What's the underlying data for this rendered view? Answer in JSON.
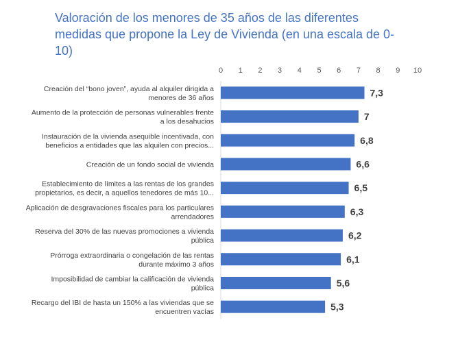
{
  "chart_data": {
    "type": "bar",
    "orientation": "horizontal",
    "title": "Valoración de los menores de 35 años de las diferentes medidas que propone la Ley de Vivienda (en una escala de 0-10)",
    "categories": [
      [
        "Creación del “bono joven”, ayuda al alquiler dirigida a",
        "menores de 36 años"
      ],
      [
        "Aumento de la protección de personas vulnerables frente",
        "a los desahucios"
      ],
      [
        "Instauración de la vivienda asequible incentivada, con",
        "beneficios a entidades que las alquilen con precios..."
      ],
      [
        "Creación de un fondo social de vivienda"
      ],
      [
        "Establecimiento de límites a las rentas de los grandes",
        "propietarios, es decir, a aquellos tenedores de más 10..."
      ],
      [
        "Aplicación de desgravaciones fiscales para los particulares",
        "arrendadores"
      ],
      [
        "Reserva del 30% de las nuevas promociones a vivienda",
        "pública"
      ],
      [
        "Prórroga extraordinaria o congelación de las rentas",
        "durante máximo 3 años"
      ],
      [
        "Imposibilidad de cambiar la calificación de vivienda",
        "pública"
      ],
      [
        "Recargo del IBI de hasta un 150% a las viviendas que se",
        "encuentren vacías"
      ]
    ],
    "values": [
      7.3,
      7,
      6.8,
      6.6,
      6.5,
      6.3,
      6.2,
      6.1,
      5.6,
      5.3
    ],
    "data_labels": [
      "7,3",
      "7",
      "6,8",
      "6,6",
      "6,5",
      "6,3",
      "6,2",
      "6,1",
      "5,6",
      "5,3"
    ],
    "xlim": [
      0,
      10
    ],
    "x_ticks": [
      "0",
      "1",
      "2",
      "3",
      "4",
      "5",
      "6",
      "7",
      "8",
      "9",
      "10"
    ],
    "x_axis_position": "top",
    "grid": false,
    "bar_color": "#4472c4",
    "title_color": "#4472c4"
  }
}
